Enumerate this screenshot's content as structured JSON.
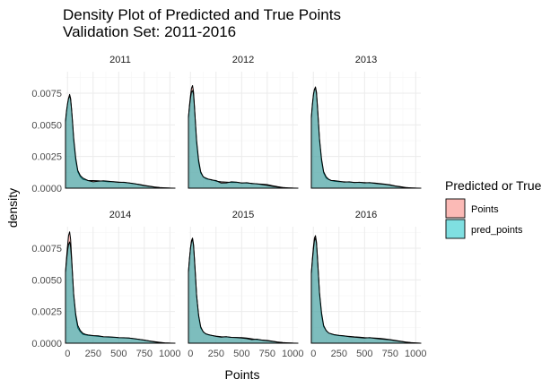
{
  "chart_data": {
    "type": "area",
    "title": "Density Plot of Predicted and True Points",
    "subtitle": "Validation Set: 2011-2016",
    "xlabel": "Points",
    "ylabel": "density",
    "xlim": [
      -20,
      1050
    ],
    "ylim": [
      0,
      0.0092
    ],
    "x_ticks": [
      0,
      250,
      500,
      750,
      1000
    ],
    "x_tick_labels": [
      "0",
      "250",
      "500",
      "750",
      "1000"
    ],
    "y_ticks": [
      0,
      0.0025,
      0.005,
      0.0075
    ],
    "y_tick_labels": [
      "0.0000",
      "0.0025",
      "0.0050",
      "0.0075"
    ],
    "grid": true,
    "legend": {
      "title": "Predicted or True",
      "position": "right",
      "entries": [
        {
          "label": "Points",
          "color": "#F8766D"
        },
        {
          "label": "pred_points",
          "color": "#00BFC4"
        }
      ]
    },
    "x": [
      -20,
      -10,
      0,
      10,
      20,
      30,
      40,
      50,
      60,
      80,
      100,
      125,
      150,
      175,
      200,
      250,
      300,
      350,
      400,
      450,
      500,
      550,
      600,
      650,
      700,
      750,
      800,
      850,
      900,
      950,
      1000,
      1050
    ],
    "panels": [
      {
        "label": "2011",
        "series": [
          {
            "name": "Points",
            "values": [
              0.0052,
              0.006,
              0.0066,
              0.0071,
              0.0074,
              0.0071,
              0.0062,
              0.005,
              0.0038,
              0.0022,
              0.0013,
              0.0009,
              0.0007,
              0.00065,
              0.0006,
              0.0006,
              0.00058,
              0.00055,
              0.0005,
              0.00052,
              0.00048,
              0.00045,
              0.0004,
              0.00035,
              0.0003,
              0.00022,
              0.00016,
              0.0001,
              6e-05,
              3e-05,
              1e-05,
              0
            ]
          },
          {
            "name": "pred_points",
            "values": [
              0.0053,
              0.0061,
              0.0067,
              0.0071,
              0.0073,
              0.007,
              0.0062,
              0.0051,
              0.004,
              0.0024,
              0.0014,
              0.001,
              0.0008,
              0.0007,
              0.0006,
              0.0005,
              0.00055,
              0.00058,
              0.00055,
              0.0005,
              0.00046,
              0.00047,
              0.00042,
              0.00036,
              0.00028,
              0.0002,
              0.00014,
              8e-05,
              4e-05,
              2e-05,
              1e-05,
              0
            ]
          }
        ]
      },
      {
        "label": "2012",
        "series": [
          {
            "name": "Points",
            "values": [
              0.0055,
              0.0065,
              0.0073,
              0.0079,
              0.0081,
              0.0076,
              0.0064,
              0.0049,
              0.0036,
              0.002,
              0.0012,
              0.0009,
              0.00075,
              0.0007,
              0.00068,
              0.00055,
              0.0005,
              0.00048,
              0.00045,
              0.00046,
              0.00042,
              0.0004,
              0.00038,
              0.00033,
              0.00032,
              0.00028,
              0.0002,
              0.00012,
              6e-05,
              3e-05,
              1e-05,
              0
            ]
          },
          {
            "name": "pred_points",
            "values": [
              0.0056,
              0.0064,
              0.0071,
              0.0076,
              0.0077,
              0.0074,
              0.0063,
              0.005,
              0.0038,
              0.0022,
              0.0013,
              0.0009,
              0.0008,
              0.00072,
              0.00066,
              0.0006,
              0.0004,
              0.00042,
              0.0005,
              0.00048,
              0.0004,
              0.00043,
              0.00036,
              0.00035,
              0.00028,
              0.00022,
              0.00015,
              9e-05,
              5e-05,
              2e-05,
              1e-05,
              0
            ]
          }
        ]
      },
      {
        "label": "2013",
        "series": [
          {
            "name": "Points",
            "values": [
              0.0055,
              0.0065,
              0.0073,
              0.0078,
              0.008,
              0.0076,
              0.0065,
              0.0051,
              0.0038,
              0.0021,
              0.0012,
              0.0008,
              0.00068,
              0.0006,
              0.00055,
              0.00052,
              0.0005,
              0.00048,
              0.00046,
              0.00045,
              0.00044,
              0.00042,
              0.0004,
              0.00036,
              0.00032,
              0.00026,
              0.00018,
              0.00012,
              6e-05,
              3e-05,
              1e-05,
              0
            ]
          },
          {
            "name": "pred_points",
            "values": [
              0.0056,
              0.0066,
              0.0074,
              0.0078,
              0.0079,
              0.0075,
              0.0064,
              0.0051,
              0.0039,
              0.0023,
              0.0013,
              0.0009,
              0.0007,
              0.0006,
              0.0006,
              0.00055,
              0.00048,
              0.0005,
              0.00044,
              0.00047,
              0.00042,
              0.00044,
              0.00038,
              0.00034,
              0.0003,
              0.00024,
              0.00016,
              0.0001,
              5e-05,
              2e-05,
              1e-05,
              0
            ]
          }
        ]
      },
      {
        "label": "2014",
        "series": [
          {
            "name": "Points",
            "values": [
              0.0056,
              0.0067,
              0.0077,
              0.0085,
              0.0088,
              0.0082,
              0.0068,
              0.0052,
              0.0038,
              0.0021,
              0.0012,
              0.0009,
              0.0007,
              0.00065,
              0.00062,
              0.00058,
              0.00054,
              0.0005,
              0.00048,
              0.00046,
              0.00043,
              0.00042,
              0.0004,
              0.00035,
              0.0003,
              0.00025,
              0.00018,
              0.00012,
              7e-05,
              3e-05,
              1e-05,
              0
            ]
          },
          {
            "name": "pred_points",
            "values": [
              0.0056,
              0.0065,
              0.0073,
              0.0078,
              0.008,
              0.0076,
              0.0066,
              0.0052,
              0.0039,
              0.0023,
              0.0014,
              0.001,
              0.00078,
              0.0007,
              0.00066,
              0.0006,
              0.00058,
              0.00052,
              0.0005,
              0.00048,
              0.00044,
              0.00043,
              0.0004,
              0.00036,
              0.0003,
              0.00024,
              0.00017,
              0.0001,
              5e-05,
              2e-05,
              1e-05,
              0
            ]
          }
        ]
      },
      {
        "label": "2015",
        "series": [
          {
            "name": "Points",
            "values": [
              0.0056,
              0.0066,
              0.0075,
              0.0081,
              0.0083,
              0.0078,
              0.0066,
              0.0052,
              0.0038,
              0.0021,
              0.0012,
              0.0009,
              0.00072,
              0.00066,
              0.00062,
              0.00056,
              0.00052,
              0.0005,
              0.00046,
              0.00045,
              0.00044,
              0.0004,
              0.00035,
              0.00028,
              0.00025,
              0.00022,
              0.00016,
              0.0001,
              6e-05,
              3e-05,
              1e-05,
              0
            ]
          },
          {
            "name": "pred_points",
            "values": [
              0.0056,
              0.0066,
              0.0075,
              0.008,
              0.0082,
              0.0077,
              0.0065,
              0.0051,
              0.0038,
              0.0022,
              0.0013,
              0.0009,
              0.00074,
              0.00068,
              0.00063,
              0.00054,
              0.00048,
              0.00052,
              0.00046,
              0.00044,
              0.0004,
              0.00036,
              0.00028,
              0.00032,
              0.00024,
              0.0002,
              0.00014,
              8e-05,
              4e-05,
              2e-05,
              1e-05,
              0
            ]
          }
        ]
      },
      {
        "label": "2016",
        "series": [
          {
            "name": "Points",
            "values": [
              0.0055,
              0.0066,
              0.0076,
              0.0083,
              0.0085,
              0.008,
              0.0068,
              0.0053,
              0.0039,
              0.0022,
              0.0013,
              0.001,
              0.0008,
              0.00072,
              0.00066,
              0.0006,
              0.00056,
              0.00054,
              0.0005,
              0.00048,
              0.00044,
              0.00042,
              0.0004,
              0.00038,
              0.00034,
              0.00028,
              0.00022,
              0.00016,
              0.0001,
              5e-05,
              2e-05,
              0
            ]
          },
          {
            "name": "pred_points",
            "values": [
              0.0055,
              0.0065,
              0.0074,
              0.0081,
              0.0083,
              0.0079,
              0.0067,
              0.0053,
              0.004,
              0.0024,
              0.0014,
              0.001,
              0.0008,
              0.00074,
              0.00068,
              0.00062,
              0.00058,
              0.00052,
              0.00048,
              0.00044,
              0.0004,
              0.00044,
              0.00038,
              0.00034,
              0.0003,
              0.00026,
              0.0002,
              0.00014,
              8e-05,
              4e-05,
              2e-05,
              0
            ]
          }
        ]
      }
    ]
  }
}
